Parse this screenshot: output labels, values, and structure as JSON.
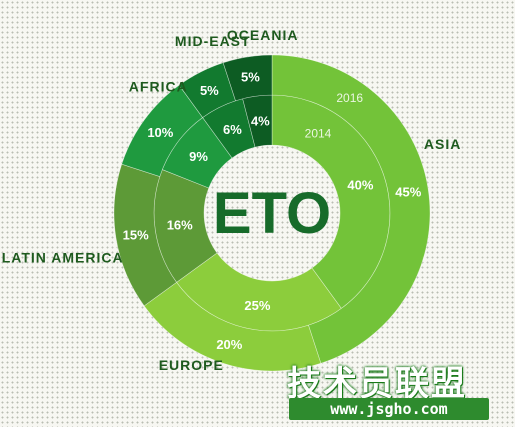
{
  "chart_data": {
    "type": "pie",
    "center_label": "ETO",
    "series": [
      {
        "name": "2014",
        "values": [
          40,
          25,
          16,
          9,
          6,
          4
        ]
      },
      {
        "name": "2016",
        "values": [
          45,
          20,
          15,
          10,
          5,
          5
        ]
      }
    ],
    "categories": [
      "ASIA",
      "EUROPE",
      "LATIN AMERICA",
      "AFRICA",
      "MID-EAST",
      "OCEANIA"
    ],
    "colors": [
      "#73c339",
      "#8ccd3c",
      "#5d9a37",
      "#1f9a3f",
      "#127a2f",
      "#0d5c23"
    ]
  },
  "watermark": {
    "brand": "技术员联盟",
    "url": "www.jsgho.com"
  }
}
